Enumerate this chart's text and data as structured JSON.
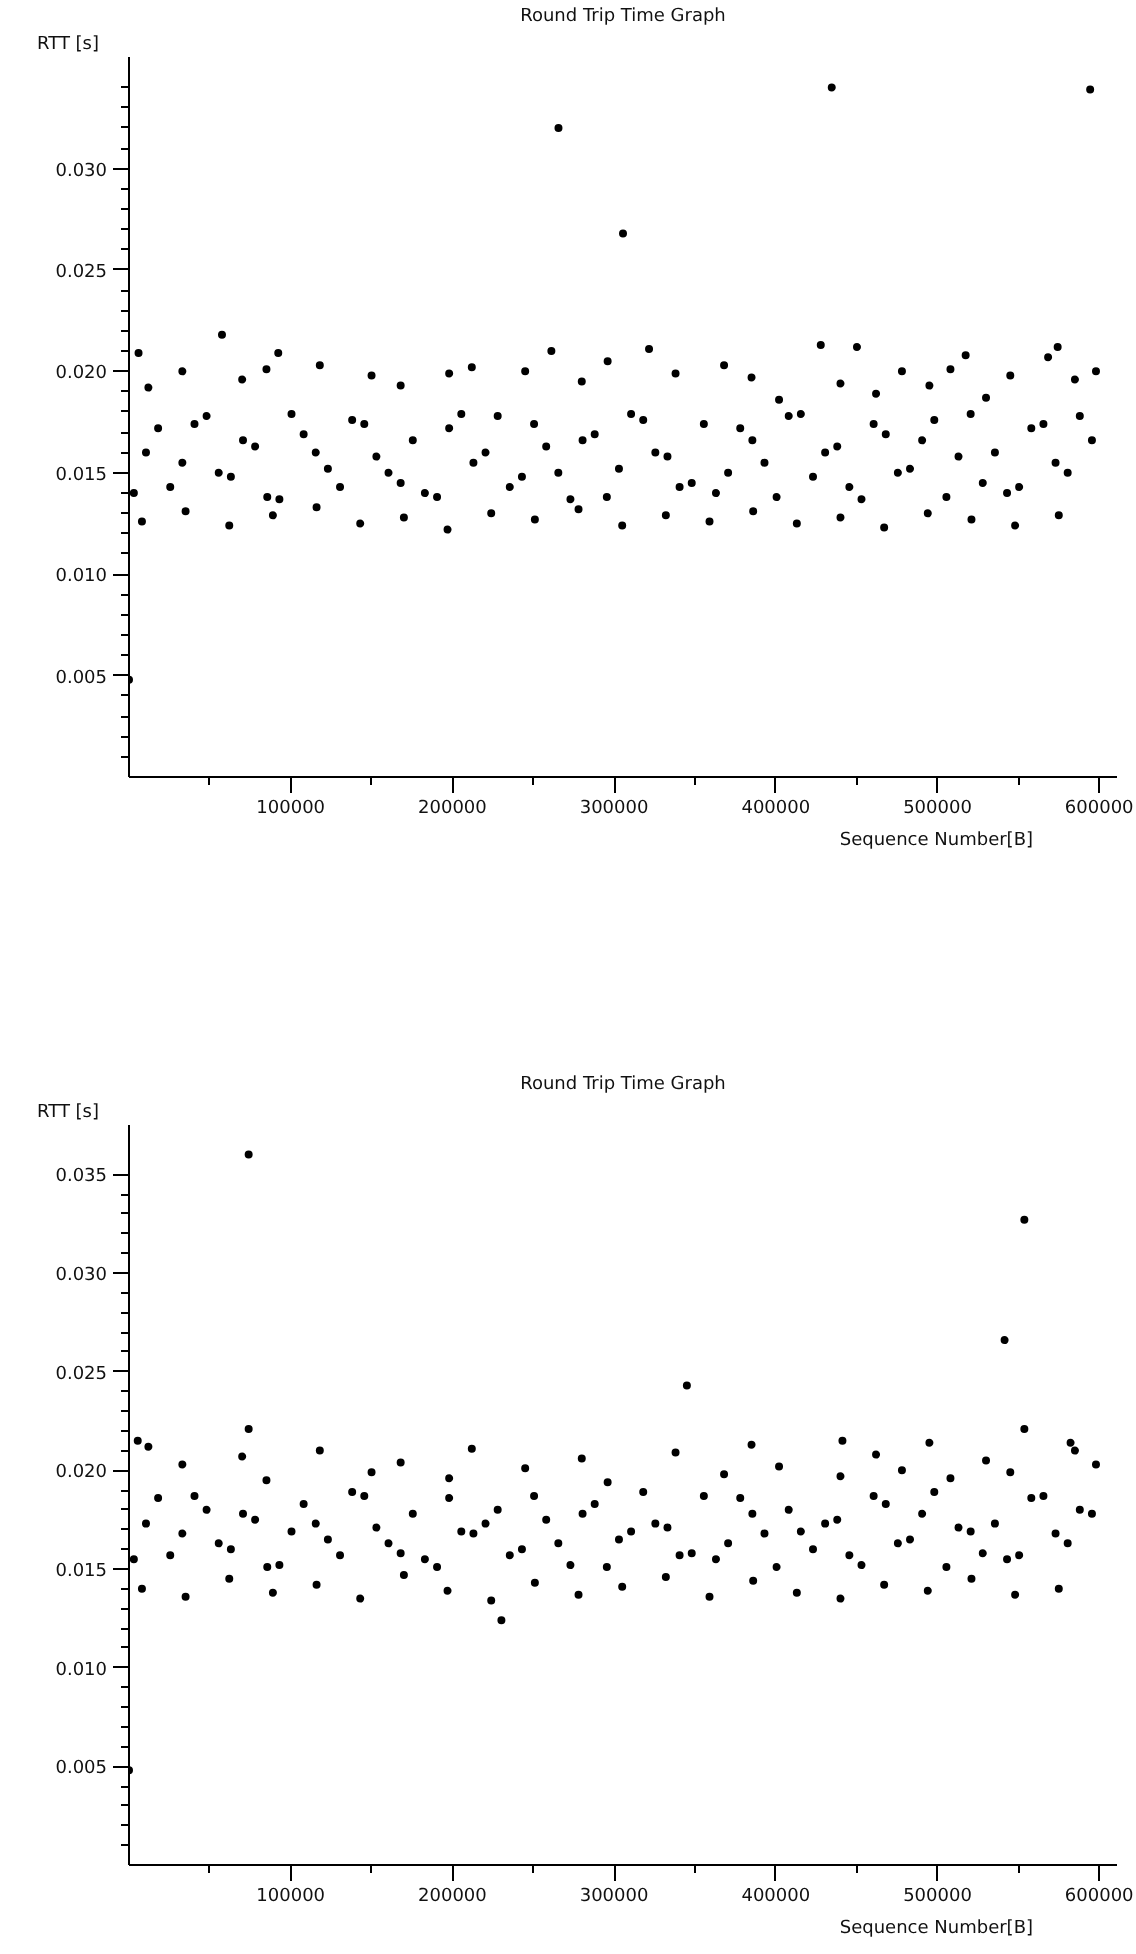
{
  "chart_data": [
    {
      "type": "scatter",
      "title": "Round Trip Time Graph",
      "xlabel": "Sequence Number[B]",
      "ylabel": "RTT [s]",
      "color": "#000000",
      "marker": "circle",
      "x": [
        0,
        5900,
        57500,
        92300,
        261200,
        265600,
        305500,
        321600,
        427800,
        434600,
        450200,
        517400,
        568400,
        574300,
        594400,
        12000,
        33000,
        70000,
        85000,
        118000,
        150000,
        168000,
        198000,
        212000,
        245000,
        280000,
        296000,
        338000,
        368000,
        385000,
        402000,
        440000,
        462000,
        478000,
        495000,
        508000,
        530000,
        545000,
        585000,
        598000,
        3000,
        18000,
        33000,
        48000,
        63000,
        78000,
        93000,
        108000,
        123000,
        138000,
        153000,
        168000,
        183000,
        198000,
        213000,
        228000,
        243000,
        258000,
        273000,
        288000,
        303000,
        318000,
        333000,
        348000,
        363000,
        378000,
        393000,
        408000,
        423000,
        438000,
        453000,
        468000,
        483000,
        498000,
        513000,
        528000,
        543000,
        558000,
        573000,
        588000,
        10500,
        25500,
        40500,
        55500,
        70500,
        85500,
        100500,
        115500,
        130500,
        145500,
        160500,
        175500,
        190500,
        205500,
        220500,
        235500,
        250500,
        265500,
        280500,
        295500,
        310500,
        325500,
        340500,
        355500,
        370500,
        385500,
        400500,
        415500,
        430500,
        445500,
        460500,
        475500,
        490500,
        505500,
        520500,
        535500,
        550500,
        565500,
        580500,
        595500,
        8000,
        35000,
        62000,
        89000,
        116000,
        143000,
        170000,
        197000,
        224000,
        251000,
        278000,
        305000,
        332000,
        359000,
        386000,
        413000,
        440000,
        467000,
        494000,
        521000,
        548000,
        575000
      ],
      "values": [
        0.0048,
        0.0209,
        0.0218,
        0.0209,
        0.021,
        0.032,
        0.0268,
        0.0211,
        0.0213,
        0.034,
        0.0212,
        0.0208,
        0.0207,
        0.0212,
        0.0339,
        0.0192,
        0.02,
        0.0196,
        0.0201,
        0.0203,
        0.0198,
        0.0193,
        0.0199,
        0.0202,
        0.02,
        0.0195,
        0.0205,
        0.0199,
        0.0203,
        0.0197,
        0.0186,
        0.0194,
        0.0189,
        0.02,
        0.0193,
        0.0201,
        0.0187,
        0.0198,
        0.0196,
        0.02,
        0.014,
        0.0172,
        0.0155,
        0.0178,
        0.0148,
        0.0163,
        0.0137,
        0.0169,
        0.0152,
        0.0176,
        0.0158,
        0.0145,
        0.014,
        0.0172,
        0.0155,
        0.0178,
        0.0148,
        0.0163,
        0.0137,
        0.0169,
        0.0152,
        0.0176,
        0.0158,
        0.0145,
        0.014,
        0.0172,
        0.0155,
        0.0178,
        0.0148,
        0.0163,
        0.0137,
        0.0169,
        0.0152,
        0.0176,
        0.0158,
        0.0145,
        0.014,
        0.0172,
        0.0155,
        0.0178,
        0.016,
        0.0143,
        0.0174,
        0.015,
        0.0166,
        0.0138,
        0.0179,
        0.016,
        0.0143,
        0.0174,
        0.015,
        0.0166,
        0.0138,
        0.0179,
        0.016,
        0.0143,
        0.0174,
        0.015,
        0.0166,
        0.0138,
        0.0179,
        0.016,
        0.0143,
        0.0174,
        0.015,
        0.0166,
        0.0138,
        0.0179,
        0.016,
        0.0143,
        0.0174,
        0.015,
        0.0166,
        0.0138,
        0.0179,
        0.016,
        0.0143,
        0.0174,
        0.015,
        0.0166,
        0.0126,
        0.0131,
        0.0124,
        0.0129,
        0.0133,
        0.0125,
        0.0128,
        0.0122,
        0.013,
        0.0127,
        0.0132,
        0.0124,
        0.0129,
        0.0126,
        0.0131,
        0.0125,
        0.0128,
        0.0123,
        0.013,
        0.0127,
        0.0124,
        0.0129
      ],
      "xlim": [
        0,
        611000
      ],
      "ylim": [
        0,
        0.0355
      ],
      "xticks": [
        {
          "value": 50000,
          "label": null
        },
        100000,
        {
          "value": 150000,
          "label": null
        },
        200000,
        {
          "value": 250000,
          "label": null
        },
        300000,
        {
          "value": 350000,
          "label": null
        },
        400000,
        {
          "value": 450000,
          "label": null
        },
        500000,
        {
          "value": 550000,
          "label": null
        },
        600000
      ],
      "yticks": [
        {
          "value": 0.001,
          "label": null
        },
        {
          "value": 0.002,
          "label": null
        },
        {
          "value": 0.003,
          "label": null
        },
        {
          "value": 0.004,
          "label": null
        },
        {
          "value": 0.005,
          "label": "0.005"
        },
        {
          "value": 0.006,
          "label": null
        },
        {
          "value": 0.007,
          "label": null
        },
        {
          "value": 0.008,
          "label": null
        },
        {
          "value": 0.009,
          "label": null
        },
        {
          "value": 0.01,
          "label": "0.010"
        },
        {
          "value": 0.011,
          "label": null
        },
        {
          "value": 0.012,
          "label": null
        },
        {
          "value": 0.013,
          "label": null
        },
        {
          "value": 0.014,
          "label": null
        },
        {
          "value": 0.015,
          "label": "0.015"
        },
        {
          "value": 0.016,
          "label": null
        },
        {
          "value": 0.017,
          "label": null
        },
        {
          "value": 0.018,
          "label": null
        },
        {
          "value": 0.019,
          "label": null
        },
        {
          "value": 0.02,
          "label": "0.020"
        },
        {
          "value": 0.021,
          "label": null
        },
        {
          "value": 0.022,
          "label": null
        },
        {
          "value": 0.023,
          "label": null
        },
        {
          "value": 0.024,
          "label": null
        },
        {
          "value": 0.025,
          "label": "0.025"
        },
        {
          "value": 0.026,
          "label": null
        },
        {
          "value": 0.027,
          "label": null
        },
        {
          "value": 0.028,
          "label": null
        },
        {
          "value": 0.029,
          "label": null
        },
        {
          "value": 0.03,
          "label": "0.030"
        },
        {
          "value": 0.031,
          "label": null
        },
        {
          "value": 0.032,
          "label": null
        },
        {
          "value": 0.033,
          "label": null
        },
        {
          "value": 0.034,
          "label": null
        }
      ]
    },
    {
      "type": "scatter",
      "title": "Round Trip Time Graph",
      "xlabel": "Sequence Number[B]",
      "ylabel": "RTT [s]",
      "color": "#000000",
      "marker": "circle",
      "x": [
        0,
        5400,
        74000,
        74000,
        230300,
        345000,
        441200,
        541500,
        553700,
        553700,
        582300,
        12000,
        33000,
        70000,
        85000,
        118000,
        150000,
        168000,
        198000,
        212000,
        245000,
        280000,
        296000,
        338000,
        368000,
        385000,
        402000,
        440000,
        462000,
        478000,
        495000,
        508000,
        530000,
        545000,
        585000,
        598000,
        3000,
        18000,
        33000,
        48000,
        63000,
        78000,
        93000,
        108000,
        123000,
        138000,
        153000,
        168000,
        183000,
        198000,
        213000,
        228000,
        243000,
        258000,
        273000,
        288000,
        303000,
        318000,
        333000,
        348000,
        363000,
        378000,
        393000,
        408000,
        423000,
        438000,
        453000,
        468000,
        483000,
        498000,
        513000,
        528000,
        543000,
        558000,
        573000,
        588000,
        10500,
        25500,
        40500,
        55500,
        70500,
        85500,
        100500,
        115500,
        130500,
        145500,
        160500,
        175500,
        190500,
        205500,
        220500,
        235500,
        250500,
        265500,
        280500,
        295500,
        310500,
        325500,
        340500,
        355500,
        370500,
        385500,
        400500,
        415500,
        430500,
        445500,
        460500,
        475500,
        490500,
        505500,
        520500,
        535500,
        550500,
        565500,
        580500,
        595500,
        8000,
        35000,
        62000,
        89000,
        116000,
        143000,
        170000,
        197000,
        224000,
        251000,
        278000,
        305000,
        332000,
        359000,
        386000,
        413000,
        440000,
        467000,
        494000,
        521000,
        548000,
        575000
      ],
      "values": [
        0.0048,
        0.0215,
        0.036,
        0.0221,
        0.0124,
        0.0243,
        0.0215,
        0.0266,
        0.0327,
        0.0221,
        0.0214,
        0.0212,
        0.0203,
        0.0207,
        0.0195,
        0.021,
        0.0199,
        0.0204,
        0.0196,
        0.0211,
        0.0201,
        0.0206,
        0.0194,
        0.0209,
        0.0198,
        0.0213,
        0.0202,
        0.0197,
        0.0208,
        0.02,
        0.0214,
        0.0196,
        0.0205,
        0.0199,
        0.021,
        0.0203,
        0.0155,
        0.0186,
        0.0168,
        0.018,
        0.016,
        0.0175,
        0.0152,
        0.0183,
        0.0165,
        0.0189,
        0.0171,
        0.0158,
        0.0155,
        0.0186,
        0.0168,
        0.018,
        0.016,
        0.0175,
        0.0152,
        0.0183,
        0.0165,
        0.0189,
        0.0171,
        0.0158,
        0.0155,
        0.0186,
        0.0168,
        0.018,
        0.016,
        0.0175,
        0.0152,
        0.0183,
        0.0165,
        0.0189,
        0.0171,
        0.0158,
        0.0155,
        0.0186,
        0.0168,
        0.018,
        0.0173,
        0.0157,
        0.0187,
        0.0163,
        0.0178,
        0.0151,
        0.0169,
        0.0173,
        0.0157,
        0.0187,
        0.0163,
        0.0178,
        0.0151,
        0.0169,
        0.0173,
        0.0157,
        0.0187,
        0.0163,
        0.0178,
        0.0151,
        0.0169,
        0.0173,
        0.0157,
        0.0187,
        0.0163,
        0.0178,
        0.0151,
        0.0169,
        0.0173,
        0.0157,
        0.0187,
        0.0163,
        0.0178,
        0.0151,
        0.0169,
        0.0173,
        0.0157,
        0.0187,
        0.0163,
        0.0178,
        0.014,
        0.0136,
        0.0145,
        0.0138,
        0.0142,
        0.0135,
        0.0147,
        0.0139,
        0.0134,
        0.0143,
        0.0137,
        0.0141,
        0.0146,
        0.0136,
        0.0144,
        0.0138,
        0.0135,
        0.0142,
        0.0139,
        0.0145,
        0.0137,
        0.014
      ],
      "xlim": [
        0,
        611000
      ],
      "ylim": [
        0,
        0.0375
      ],
      "xticks": [
        {
          "value": 50000,
          "label": null
        },
        100000,
        {
          "value": 150000,
          "label": null
        },
        200000,
        {
          "value": 250000,
          "label": null
        },
        300000,
        {
          "value": 350000,
          "label": null
        },
        400000,
        {
          "value": 450000,
          "label": null
        },
        500000,
        {
          "value": 550000,
          "label": null
        },
        600000
      ],
      "yticks": [
        {
          "value": 0.001,
          "label": null
        },
        {
          "value": 0.002,
          "label": null
        },
        {
          "value": 0.003,
          "label": null
        },
        {
          "value": 0.004,
          "label": null
        },
        {
          "value": 0.005,
          "label": "0.005"
        },
        {
          "value": 0.006,
          "label": null
        },
        {
          "value": 0.007,
          "label": null
        },
        {
          "value": 0.008,
          "label": null
        },
        {
          "value": 0.009,
          "label": null
        },
        {
          "value": 0.01,
          "label": "0.010"
        },
        {
          "value": 0.011,
          "label": null
        },
        {
          "value": 0.012,
          "label": null
        },
        {
          "value": 0.013,
          "label": null
        },
        {
          "value": 0.014,
          "label": null
        },
        {
          "value": 0.015,
          "label": "0.015"
        },
        {
          "value": 0.016,
          "label": null
        },
        {
          "value": 0.017,
          "label": null
        },
        {
          "value": 0.018,
          "label": null
        },
        {
          "value": 0.019,
          "label": null
        },
        {
          "value": 0.02,
          "label": "0.020"
        },
        {
          "value": 0.021,
          "label": null
        },
        {
          "value": 0.022,
          "label": null
        },
        {
          "value": 0.023,
          "label": null
        },
        {
          "value": 0.024,
          "label": null
        },
        {
          "value": 0.025,
          "label": "0.025"
        },
        {
          "value": 0.026,
          "label": null
        },
        {
          "value": 0.027,
          "label": null
        },
        {
          "value": 0.028,
          "label": null
        },
        {
          "value": 0.029,
          "label": null
        },
        {
          "value": 0.03,
          "label": "0.030"
        },
        {
          "value": 0.031,
          "label": null
        },
        {
          "value": 0.032,
          "label": null
        },
        {
          "value": 0.033,
          "label": null
        },
        {
          "value": 0.034,
          "label": null
        },
        {
          "value": 0.035,
          "label": "0.035"
        }
      ]
    }
  ]
}
